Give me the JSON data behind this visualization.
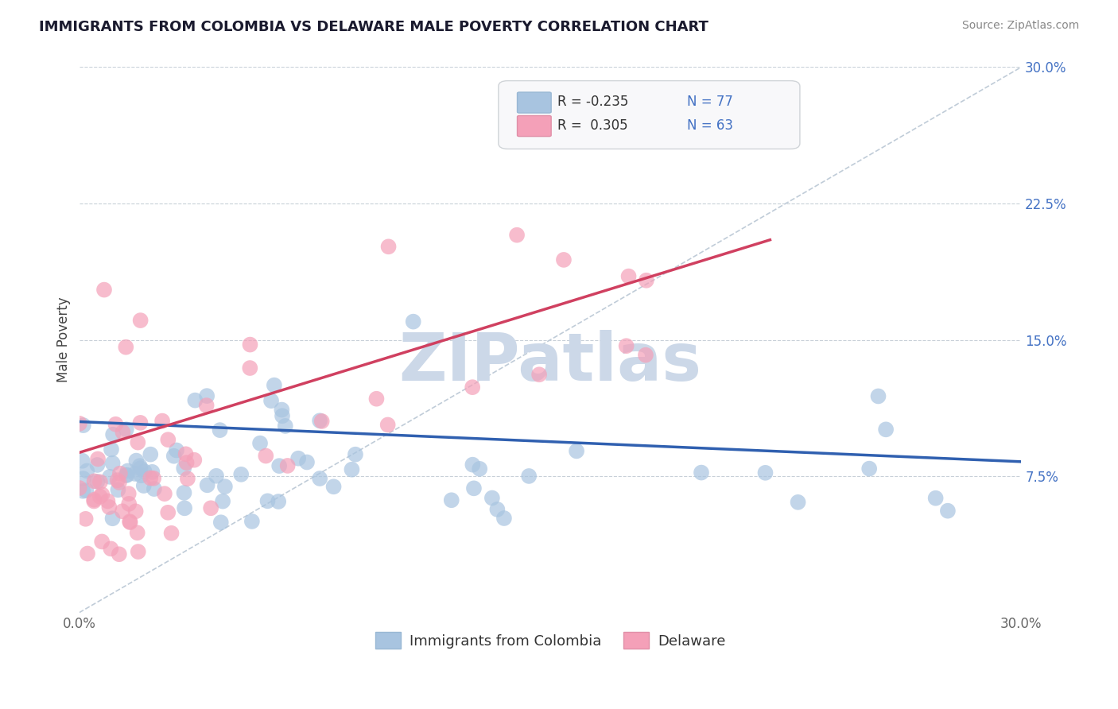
{
  "title": "IMMIGRANTS FROM COLOMBIA VS DELAWARE MALE POVERTY CORRELATION CHART",
  "source": "Source: ZipAtlas.com",
  "ylabel": "Male Poverty",
  "xmin": 0.0,
  "xmax": 0.3,
  "ymin": 0.0,
  "ymax": 0.3,
  "yticks": [
    0.075,
    0.15,
    0.225,
    0.3
  ],
  "ytick_labels": [
    "7.5%",
    "15.0%",
    "22.5%",
    "30.0%"
  ],
  "xticks": [
    0.0,
    0.3
  ],
  "xtick_labels": [
    "0.0%",
    "30.0%"
  ],
  "legend_r1": "R = -0.235",
  "legend_n1": "N = 77",
  "legend_r2": "R =  0.305",
  "legend_n2": "N = 63",
  "series1_color": "#a8c4e0",
  "series2_color": "#f4a0b8",
  "trend1_color": "#3060b0",
  "trend2_color": "#d04060",
  "watermark": "ZIPatlas",
  "watermark_color": "#ccd8e8",
  "background_color": "#ffffff",
  "grid_color": "#c8d0d8",
  "series1_name": "Immigrants from Colombia",
  "series2_name": "Delaware",
  "series1_N": 77,
  "series2_N": 63,
  "trend1_x": [
    0.0,
    0.3
  ],
  "trend1_y": [
    0.105,
    0.083
  ],
  "trend2_x": [
    0.0,
    0.22
  ],
  "trend2_y": [
    0.088,
    0.205
  ]
}
